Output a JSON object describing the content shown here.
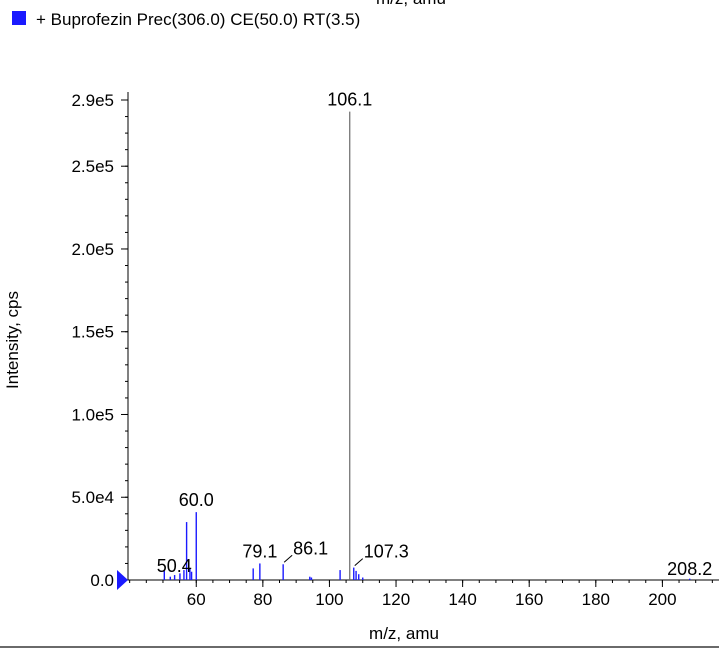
{
  "top_label": "m/z, amu",
  "legend": {
    "label": "+ Buprofezin Prec(306.0) CE(50.0) RT(3.5)",
    "color": "#1a1aff"
  },
  "chart_data": {
    "type": "bar",
    "title": "",
    "xlabel": "m/z, amu",
    "ylabel": "Intensity, cps",
    "xlim": [
      39.5,
      217
    ],
    "ylim": [
      0,
      290000
    ],
    "x_ticks": [
      60,
      80,
      100,
      120,
      140,
      160,
      180,
      200
    ],
    "y_ticks": [
      {
        "value": 0,
        "label": "0.0"
      },
      {
        "value": 50000,
        "label": "5.0e4"
      },
      {
        "value": 100000,
        "label": "1.0e5"
      },
      {
        "value": 150000,
        "label": "1.5e5"
      },
      {
        "value": 200000,
        "label": "2.0e5"
      },
      {
        "value": 250000,
        "label": "2.5e5"
      },
      {
        "value": 290000,
        "label": "2.9e5"
      }
    ],
    "y_minor_step": 10000,
    "x_minor_step": 5,
    "series": [
      {
        "color": "#1a1aff",
        "peaks": [
          {
            "mz": 50.4,
            "intensity": 5500,
            "label": "50.4"
          },
          {
            "mz": 52.2,
            "intensity": 2000
          },
          {
            "mz": 53.5,
            "intensity": 3000
          },
          {
            "mz": 55.1,
            "intensity": 4000
          },
          {
            "mz": 56.3,
            "intensity": 6000
          },
          {
            "mz": 57.1,
            "intensity": 35000
          },
          {
            "mz": 58.1,
            "intensity": 7000
          },
          {
            "mz": 58.6,
            "intensity": 5000
          },
          {
            "mz": 60.0,
            "intensity": 41000,
            "label": "60.0"
          },
          {
            "mz": 77.1,
            "intensity": 7000
          },
          {
            "mz": 79.1,
            "intensity": 10000,
            "label": "79.1"
          },
          {
            "mz": 86.1,
            "intensity": 9500,
            "label": "86.1"
          },
          {
            "mz": 94.1,
            "intensity": 2000
          },
          {
            "mz": 94.6,
            "intensity": 1500
          },
          {
            "mz": 103.2,
            "intensity": 6000
          },
          {
            "mz": 106.1,
            "intensity": 283000,
            "label": "106.1"
          },
          {
            "mz": 107.3,
            "intensity": 7500,
            "label": "107.3"
          },
          {
            "mz": 108.0,
            "intensity": 5500
          },
          {
            "mz": 108.8,
            "intensity": 3500
          },
          {
            "mz": 110.0,
            "intensity": 1500
          },
          {
            "mz": 208.2,
            "intensity": 800,
            "label": "208.2"
          }
        ]
      }
    ]
  }
}
